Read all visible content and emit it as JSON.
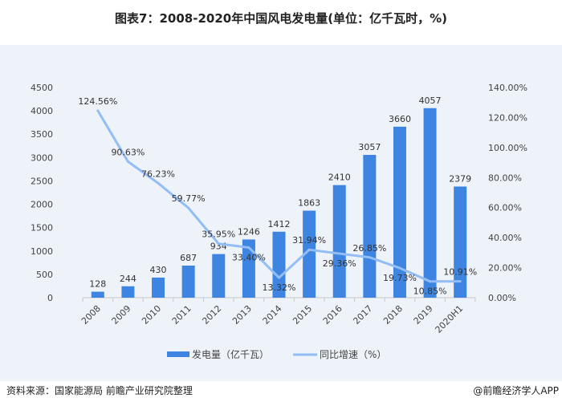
{
  "title": "图表7：2008-2020年中国风电发电量(单位：亿千瓦时，%)",
  "source": "资料来源：国家能源局 前瞻产业研究院整理",
  "credit": "@前瞻经济学人APP",
  "colors": {
    "bar": "#3d85e0",
    "line": "#93bdf5",
    "panel": "#eef2f9"
  },
  "chart_data": {
    "type": "bar+line",
    "categories": [
      "2008",
      "2009",
      "2010",
      "2011",
      "2012",
      "2013",
      "2014",
      "2015",
      "2016",
      "2017",
      "2018",
      "2019",
      "2020H1"
    ],
    "series": [
      {
        "name": "发电量（亿千瓦）",
        "type": "bar",
        "axis": "left",
        "values": [
          128,
          244,
          430,
          687,
          934,
          1246,
          1412,
          1863,
          2410,
          3057,
          3660,
          4057,
          2379
        ]
      },
      {
        "name": "同比增速（%）",
        "type": "line",
        "axis": "right",
        "values": [
          124.56,
          90.63,
          76.23,
          59.77,
          35.95,
          33.4,
          13.32,
          31.94,
          29.36,
          26.85,
          19.73,
          10.85,
          10.91
        ]
      }
    ],
    "left_axis": {
      "ylim": [
        0,
        4500
      ],
      "ticks": [
        0,
        500,
        1000,
        1500,
        2000,
        2500,
        3000,
        3500,
        4000,
        4500
      ]
    },
    "right_axis": {
      "ylim": [
        0,
        140
      ],
      "ticks": [
        "0.00%",
        "20.00%",
        "40.00%",
        "60.00%",
        "80.00%",
        "100.00%",
        "120.00%",
        "140.00%"
      ]
    },
    "legend": "bottom",
    "grid": false
  }
}
